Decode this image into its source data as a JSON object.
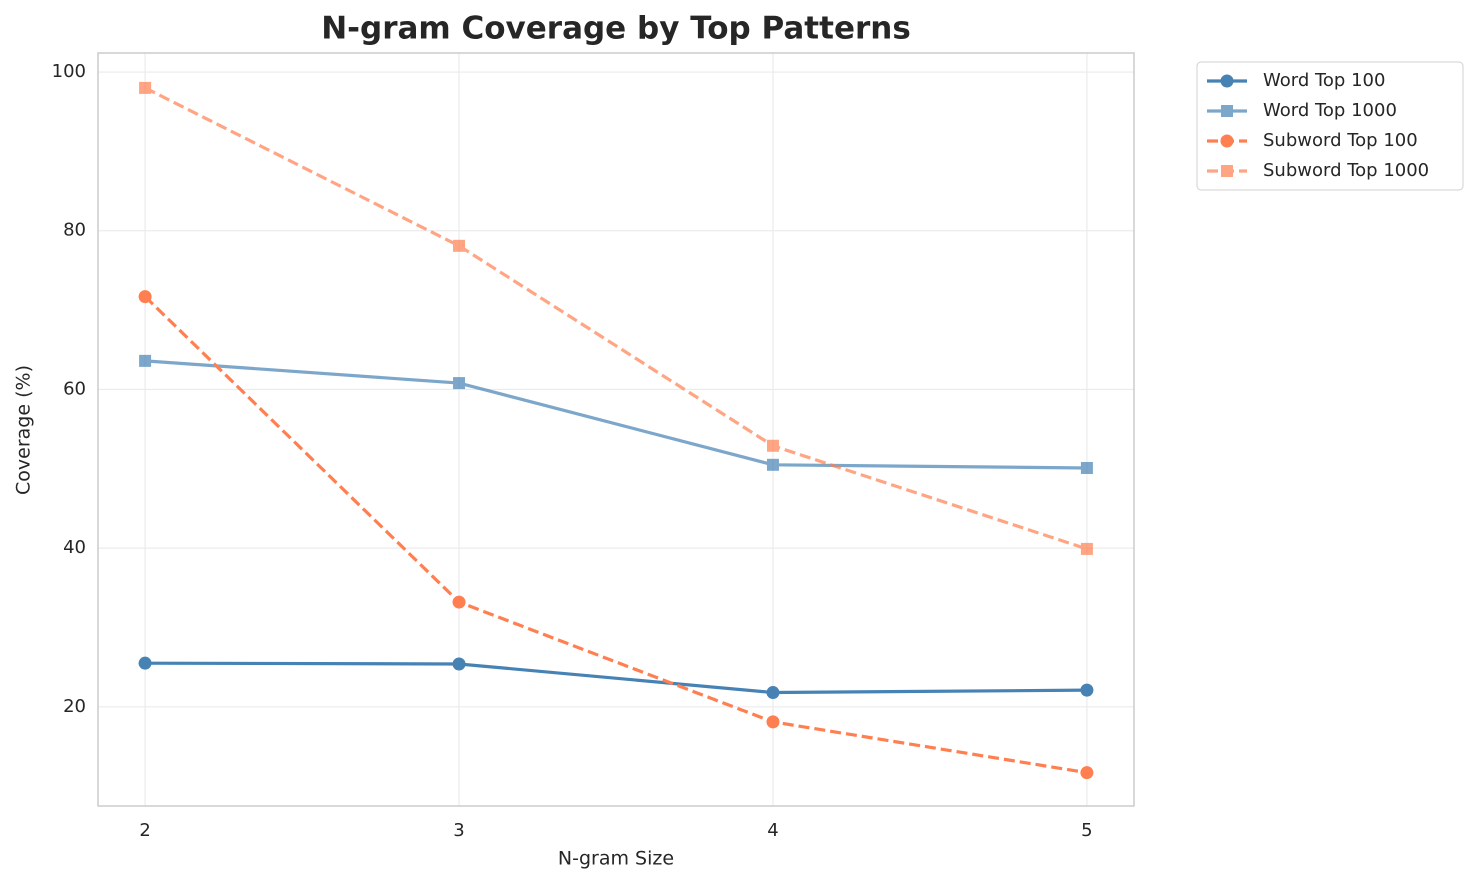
{
  "chart_data": {
    "type": "line",
    "title": "N-gram Coverage by Top Patterns",
    "xlabel": "N-gram Size",
    "ylabel": "Coverage (%)",
    "x": [
      2,
      3,
      4,
      5
    ],
    "xlim": [
      1.85,
      5.15
    ],
    "xticks": [
      2,
      3,
      4,
      5
    ],
    "ylim": [
      7.5,
      102.4
    ],
    "yticks": [
      20,
      40,
      60,
      80,
      100
    ],
    "grid": true,
    "legend": "outside upper right",
    "series": [
      {
        "name": "Word Top 100",
        "color": "#4682b4",
        "marker": "circle",
        "dashed": false,
        "alpha": 1,
        "values": [
          25.5,
          25.4,
          21.8,
          22.1
        ]
      },
      {
        "name": "Word Top 1000",
        "color": "#4682b4",
        "marker": "square",
        "dashed": false,
        "alpha": 0.7,
        "values": [
          63.6,
          60.8,
          50.5,
          50.1
        ]
      },
      {
        "name": "Subword Top 100",
        "color": "#ff7f50",
        "marker": "circle",
        "dashed": true,
        "alpha": 1,
        "values": [
          71.7,
          33.2,
          18.1,
          11.7
        ]
      },
      {
        "name": "Subword Top 1000",
        "color": "#ff7f50",
        "marker": "square",
        "dashed": true,
        "alpha": 0.7,
        "values": [
          98.0,
          78.1,
          52.9,
          39.9
        ]
      }
    ]
  }
}
